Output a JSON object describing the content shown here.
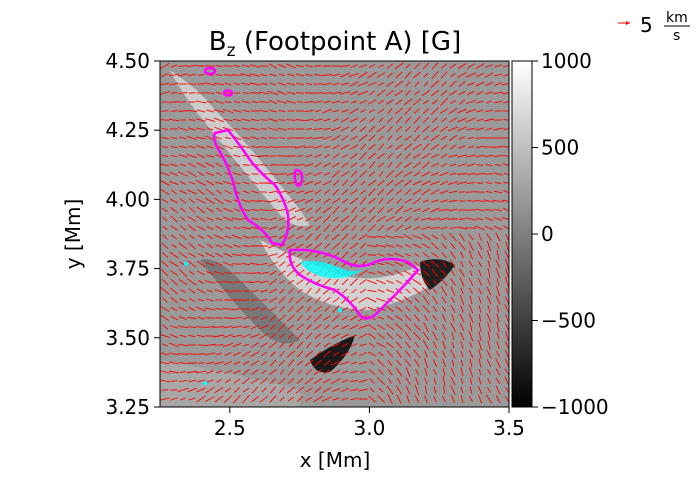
{
  "chart_data": {
    "type": "heatmap",
    "title_main": "B",
    "title_sub": "z",
    "title_rest": " (Footpoint A) [G]",
    "xlabel": "x [Mm]",
    "ylabel": "y [Mm]",
    "xlim": [
      2.25,
      3.5
    ],
    "ylim": [
      3.25,
      4.5
    ],
    "xticks": [
      2.5,
      3.0,
      3.5
    ],
    "xtick_labels": [
      "2.5",
      "3.0",
      "3.5"
    ],
    "yticks": [
      3.25,
      3.5,
      3.75,
      4.0,
      4.25,
      4.5
    ],
    "ytick_labels": [
      "3.25",
      "3.50",
      "3.75",
      "4.00",
      "4.25",
      "4.50"
    ],
    "colorbar": {
      "range": [
        -1000,
        1000
      ],
      "ticks": [
        1000,
        500,
        0,
        -500,
        -1000
      ],
      "tick_labels": [
        "1000",
        "500",
        "0",
        "−500",
        "−1000"
      ],
      "colormap": "gray"
    },
    "vector_field": {
      "color": "#ff0000",
      "reference_speed": 5,
      "reference_number": "5",
      "reference_unit_num": "km",
      "reference_unit_den": "s"
    },
    "contours": [
      {
        "color": "#ff00ff",
        "level": "positive"
      },
      {
        "color": "#00ffff",
        "level": "negative"
      }
    ],
    "grid": false
  }
}
